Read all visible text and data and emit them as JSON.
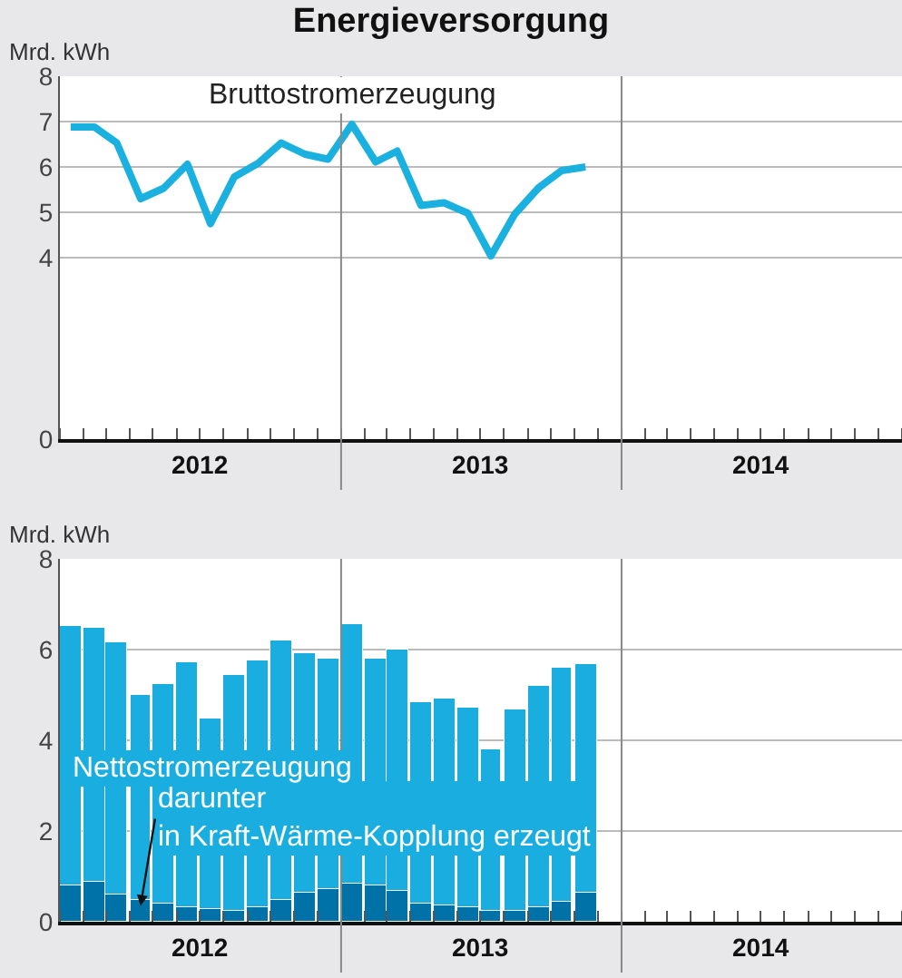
{
  "chart_data": [
    {
      "type": "line",
      "title": "Energieversorgung",
      "ylabel": "Mrd. kWh",
      "x": [
        "2012-01-15",
        "2012-02-15",
        "2012-03-15",
        "2012-04-15",
        "2012-05-15",
        "2012-06-15",
        "2012-07-15",
        "2012-08-15",
        "2012-09-15",
        "2012-10-15",
        "2012-11-15",
        "2012-12-15",
        "2013-01-15",
        "2013-02-15",
        "2013-03-15",
        "2013-04-15",
        "2013-05-15",
        "2013-06-15",
        "2013-07-15",
        "2013-08-15",
        "2013-09-15",
        "2013-10-15",
        "2013-11-15"
      ],
      "series": [
        {
          "name": "Bruttostromerzeugung",
          "color": "#1ab0e0",
          "values": [
            6.88,
            6.88,
            6.53,
            5.3,
            5.53,
            6.06,
            4.75,
            5.78,
            6.08,
            6.53,
            6.28,
            6.17,
            6.94,
            6.11,
            6.35,
            5.15,
            5.21,
            4.98,
            4.04,
            4.96,
            5.54,
            5.92,
            6.0
          ]
        }
      ],
      "xlim": [
        "2012-01-01",
        "2015-01-01"
      ],
      "xticks": [
        {
          "value": "2012-07-01",
          "label": "2012"
        },
        {
          "value": "2013-07-01",
          "label": "2013"
        },
        {
          "value": "2014-07-01",
          "label": "2014"
        }
      ],
      "ylim": [
        0,
        8
      ],
      "yticks": [
        0,
        4,
        5,
        6,
        7,
        8
      ],
      "grid": "y",
      "ref_lines": [
        {
          "axis": "x",
          "value": "2013-01-01",
          "color": "#888888"
        },
        {
          "axis": "x",
          "value": "2014-01-01",
          "color": "#888888"
        }
      ]
    },
    {
      "type": "bar",
      "stacked": true,
      "ylabel": "Mrd. kWh",
      "x": [
        "2012-01-15",
        "2012-02-15",
        "2012-03-15",
        "2012-04-15",
        "2012-05-15",
        "2012-06-15",
        "2012-07-15",
        "2012-08-15",
        "2012-09-15",
        "2012-10-15",
        "2012-11-15",
        "2012-12-15",
        "2013-01-15",
        "2013-02-15",
        "2013-03-15",
        "2013-04-15",
        "2013-05-15",
        "2013-06-15",
        "2013-07-15",
        "2013-08-15",
        "2013-09-15",
        "2013-10-15",
        "2013-11-15"
      ],
      "series": [
        {
          "name": "darunter\nin Kraft-Wärme-Kopplung erzeugt",
          "color": "#0072a8",
          "values": [
            0.8,
            0.87,
            0.6,
            0.5,
            0.4,
            0.32,
            0.28,
            0.25,
            0.32,
            0.5,
            0.63,
            0.71,
            0.85,
            0.81,
            0.68,
            0.39,
            0.36,
            0.32,
            0.25,
            0.23,
            0.33,
            0.44,
            0.63
          ]
        },
        {
          "name": "Nettostromerzeugung",
          "color": "#1aaee0",
          "values": [
            5.73,
            5.62,
            5.56,
            4.49,
            4.83,
            5.41,
            4.21,
            5.19,
            5.44,
            5.69,
            5.3,
            5.1,
            5.72,
            4.98,
            5.32,
            4.46,
            4.57,
            4.41,
            3.55,
            4.44,
            4.88,
            5.16,
            5.04
          ]
        }
      ],
      "xlim": [
        "2012-01-01",
        "2015-01-01"
      ],
      "xticks": [
        {
          "value": "2012-07-01",
          "label": "2012"
        },
        {
          "value": "2013-07-01",
          "label": "2013"
        },
        {
          "value": "2014-07-01",
          "label": "2014"
        }
      ],
      "ylim": [
        0,
        8
      ],
      "yticks": [
        0,
        2,
        4,
        6,
        8
      ],
      "grid": "y",
      "ref_lines": [
        {
          "axis": "x",
          "value": "2013-01-01",
          "color": "#888888"
        },
        {
          "axis": "x",
          "value": "2014-01-01",
          "color": "#888888"
        }
      ]
    }
  ]
}
